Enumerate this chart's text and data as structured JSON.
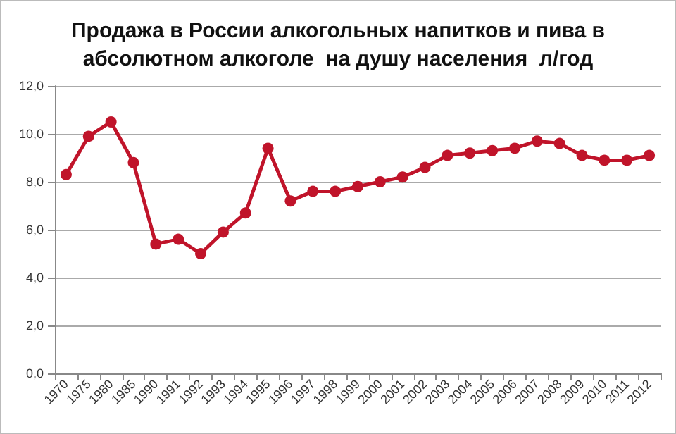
{
  "chart_data": {
    "type": "line",
    "title": "Продажа в России алкогольных напитков и пива в\nабсолютном алкоголе  на душу населения  л/год",
    "categories": [
      "1970",
      "1975",
      "1980",
      "1985",
      "1990",
      "1991",
      "1992",
      "1993",
      "1994",
      "1995",
      "1996",
      "1997",
      "1998",
      "1999",
      "2000",
      "2001",
      "2002",
      "2003",
      "2004",
      "2005",
      "2006",
      "2007",
      "2008",
      "2009",
      "2010",
      "2011",
      "2012"
    ],
    "series": [
      {
        "color": "#c0142a",
        "values": [
          8.3,
          9.9,
          10.5,
          8.8,
          5.4,
          5.6,
          5.0,
          5.9,
          6.7,
          9.4,
          7.2,
          7.6,
          7.6,
          7.8,
          8.0,
          8.2,
          8.6,
          9.1,
          9.2,
          9.3,
          9.4,
          9.7,
          9.6,
          9.1,
          8.9,
          8.9,
          9.1
        ]
      }
    ],
    "ylim": [
      0,
      12
    ],
    "yticks": [
      {
        "value": 0,
        "label": "0,0"
      },
      {
        "value": 2,
        "label": "2,0"
      },
      {
        "value": 4,
        "label": "4,0"
      },
      {
        "value": 6,
        "label": "6,0"
      },
      {
        "value": 8,
        "label": "8,0"
      },
      {
        "value": 10,
        "label": "10,0"
      },
      {
        "value": 12,
        "label": "12,0"
      }
    ],
    "grid": "y",
    "marker": "circle",
    "line_style": "solid"
  }
}
